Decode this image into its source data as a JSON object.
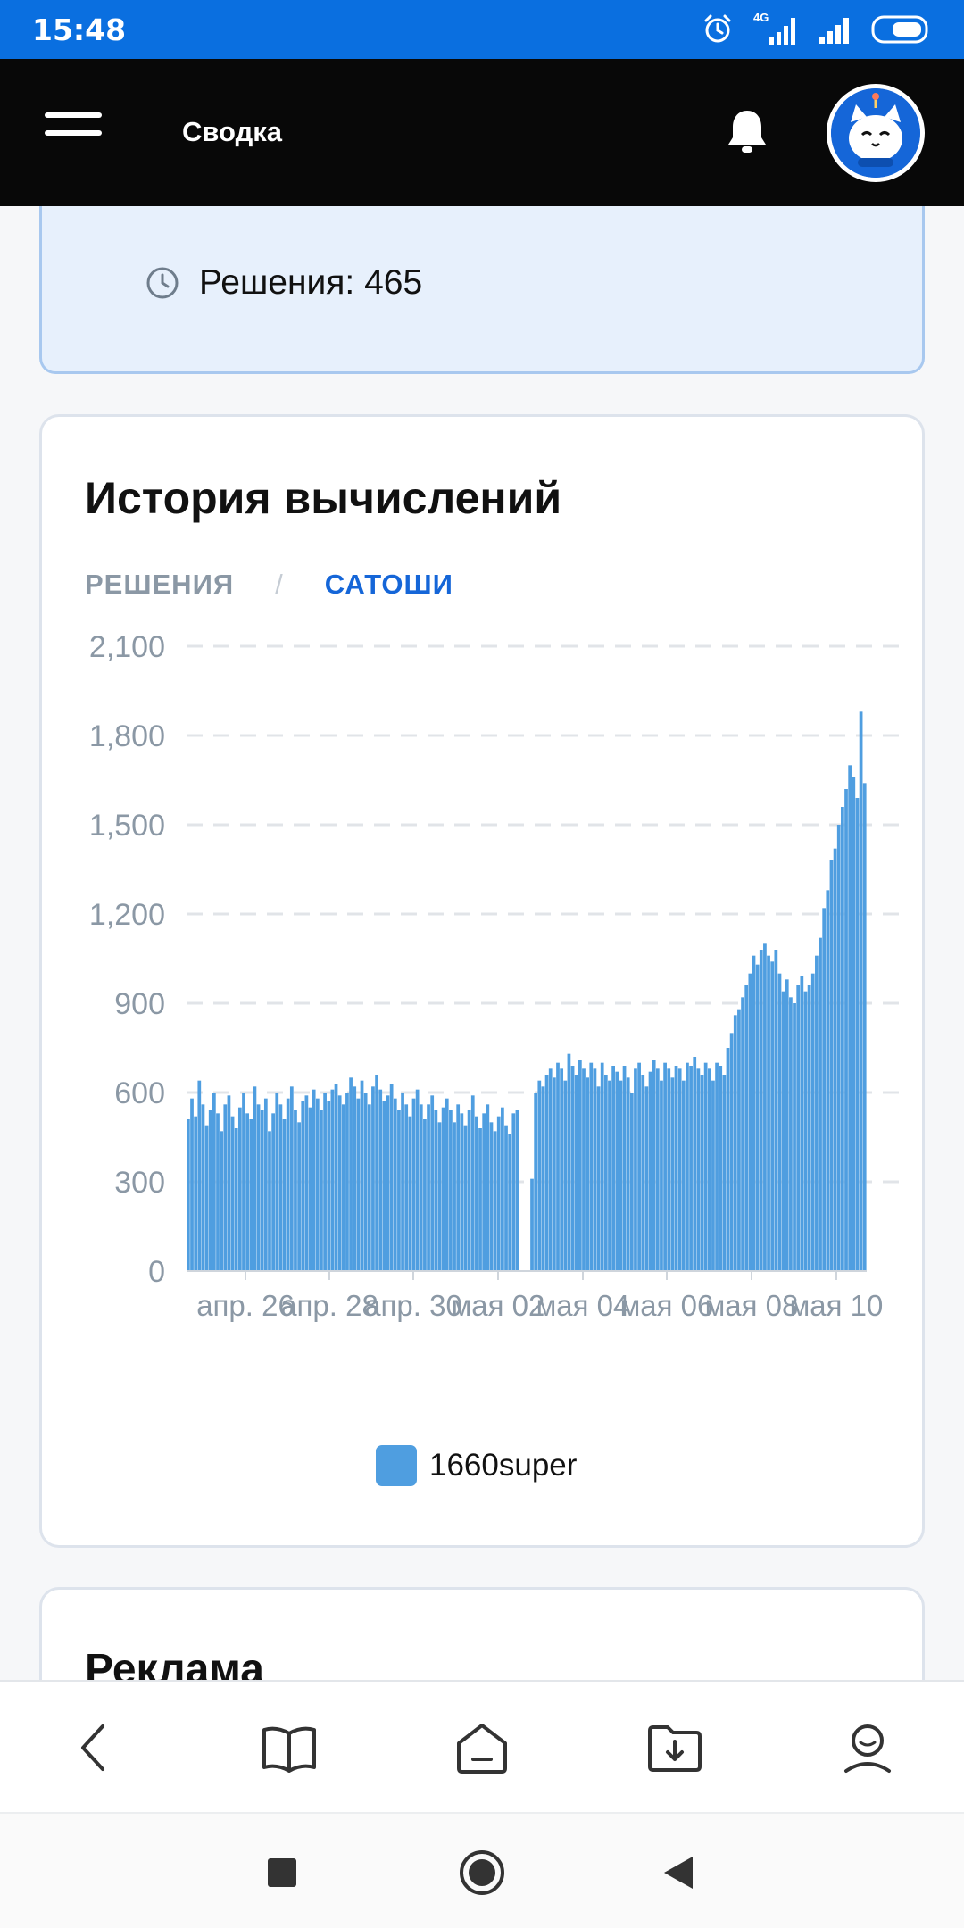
{
  "status_bar": {
    "time": "15:48",
    "network": "4G"
  },
  "app_bar": {
    "title": "Сводка"
  },
  "summary": {
    "text": "Решения: 465"
  },
  "history": {
    "title": "История вычислений",
    "tabs": {
      "inactive": "РЕШЕНИЯ",
      "separator": "/",
      "active": "САТОШИ"
    }
  },
  "ads": {
    "title": "Реклама"
  },
  "colors": {
    "accent": "#1566d8",
    "bar": "#4f9ee0",
    "status_bar": "#0a6fe0"
  },
  "icons": {
    "menu": "hamburger-icon",
    "bell": "bell-icon",
    "clock": "clock-icon",
    "back": "chevron-left-icon",
    "book": "book-icon",
    "home": "home-icon",
    "download": "download-folder-icon",
    "profile": "profile-icon"
  },
  "chart_data": {
    "type": "bar",
    "y_ticks": [
      "0",
      "300",
      "600",
      "900",
      "1,200",
      "1,500",
      "1,800",
      "2,100"
    ],
    "x_ticks": [
      "апр. 26",
      "апр. 28",
      "апр. 30",
      "мая 02",
      "мая 04",
      "мая 06",
      "мая 08",
      "мая 10"
    ],
    "ylim": [
      0,
      2100
    ],
    "grid": true,
    "legend_position": "bottom",
    "series": [
      {
        "name": "1660super",
        "values": [
          510,
          580,
          520,
          640,
          560,
          490,
          540,
          600,
          530,
          470,
          560,
          590,
          520,
          480,
          550,
          600,
          530,
          510,
          620,
          560,
          540,
          580,
          470,
          530,
          600,
          560,
          510,
          580,
          620,
          540,
          500,
          570,
          590,
          550,
          610,
          580,
          540,
          600,
          570,
          610,
          630,
          590,
          560,
          600,
          650,
          620,
          580,
          640,
          600,
          560,
          620,
          660,
          610,
          570,
          590,
          630,
          580,
          540,
          600,
          560,
          520,
          580,
          610,
          560,
          510,
          560,
          590,
          540,
          500,
          550,
          580,
          540,
          500,
          560,
          530,
          490,
          540,
          590,
          520,
          480,
          530,
          560,
          500,
          470,
          520,
          550,
          490,
          460,
          530,
          540,
          0,
          0,
          0,
          310,
          600,
          640,
          620,
          660,
          680,
          650,
          700,
          680,
          640,
          730,
          690,
          660,
          710,
          680,
          650,
          700,
          680,
          620,
          700,
          660,
          640,
          690,
          670,
          640,
          690,
          650,
          600,
          680,
          700,
          660,
          620,
          670,
          710,
          680,
          640,
          700,
          680,
          650,
          690,
          680,
          640,
          700,
          690,
          720,
          680,
          660,
          700,
          680,
          640,
          700,
          690,
          660,
          750,
          800,
          860,
          880,
          920,
          960,
          1000,
          1060,
          1030,
          1080,
          1100,
          1060,
          1040,
          1080,
          1000,
          940,
          980,
          920,
          900,
          960,
          990,
          940,
          960,
          1000,
          1060,
          1120,
          1220,
          1280,
          1380,
          1420,
          1500,
          1560,
          1620,
          1700,
          1660,
          1590,
          1880,
          1640
        ]
      }
    ]
  }
}
